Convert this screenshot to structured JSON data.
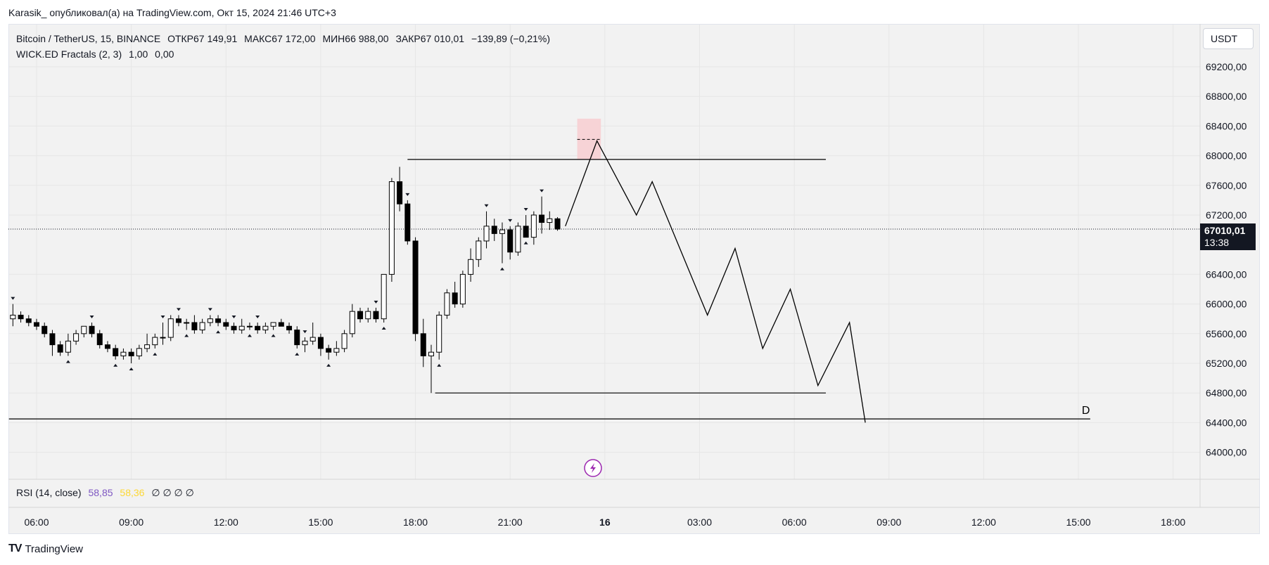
{
  "header": {
    "publisher_line": "Karasik_ опубликовал(а) на TradingView.com, Окт 15, 2024 21:46 UTC+3"
  },
  "legend": {
    "symbol": "Bitcoin / TetherUS, 15, BINANCE",
    "open": "ОТКР67 149,91",
    "high": "МАКС67 172,00",
    "low": "МИН66 988,00",
    "close": "ЗАКР67 010,01",
    "change": "−139,89 (−0,21%)",
    "indicator": "WICK.ED Fractals (2, 3)",
    "indicator_v1": "1,00",
    "indicator_v2": "0,00"
  },
  "rsi": {
    "label": "RSI (14, close)",
    "v1": "58,85",
    "v2": "58,36",
    "nulls": "∅ ∅ ∅ ∅",
    "color1": "#7e57c2",
    "color2": "#fdd835"
  },
  "currency_button": "USDT",
  "last_price": {
    "price": "67010,01",
    "countdown": "13:38"
  },
  "drawing_label": "D",
  "footer": {
    "logo_glyph": "TV",
    "brand": "TradingView"
  },
  "colors": {
    "up_body": "#ffffff",
    "down_body": "#000000",
    "zone": "#f7d3d6",
    "lightning": "#9c27b0"
  },
  "chart_data": {
    "type": "candlestick",
    "ylim": [
      63600,
      69600
    ],
    "y_ticks": [
      "69200,00",
      "68800,00",
      "68400,00",
      "68000,00",
      "67600,00",
      "67200,00",
      "66400,00",
      "66000,00",
      "65600,00",
      "65200,00",
      "64800,00",
      "64400,00",
      "64000,00"
    ],
    "y_tick_values": [
      69200,
      68800,
      68400,
      68000,
      67600,
      67200,
      66400,
      66000,
      65600,
      65200,
      64800,
      64400,
      64000
    ],
    "x_ticks": [
      {
        "label": "06:00",
        "t": 0
      },
      {
        "label": "09:00",
        "t": 12
      },
      {
        "label": "12:00",
        "t": 24
      },
      {
        "label": "15:00",
        "t": 36
      },
      {
        "label": "18:00",
        "t": 48
      },
      {
        "label": "21:00",
        "t": 60
      },
      {
        "label": "16",
        "t": 72,
        "bold": true
      },
      {
        "label": "03:00",
        "t": 84
      },
      {
        "label": "06:00",
        "t": 96
      },
      {
        "label": "09:00",
        "t": 108
      },
      {
        "label": "12:00",
        "t": 120
      },
      {
        "label": "15:00",
        "t": 132
      },
      {
        "label": "18:00",
        "t": 144
      }
    ],
    "candles": [
      {
        "t": -3,
        "o": 65800,
        "h": 66000,
        "l": 65700,
        "c": 65850
      },
      {
        "t": -2,
        "o": 65850,
        "h": 65900,
        "l": 65750,
        "c": 65800
      },
      {
        "t": -1,
        "o": 65800,
        "h": 65850,
        "l": 65700,
        "c": 65750
      },
      {
        "t": 0,
        "o": 65750,
        "h": 65800,
        "l": 65650,
        "c": 65700
      },
      {
        "t": 1,
        "o": 65700,
        "h": 65750,
        "l": 65550,
        "c": 65600
      },
      {
        "t": 2,
        "o": 65600,
        "h": 65650,
        "l": 65300,
        "c": 65450
      },
      {
        "t": 3,
        "o": 65450,
        "h": 65500,
        "l": 65300,
        "c": 65350
      },
      {
        "t": 4,
        "o": 65350,
        "h": 65600,
        "l": 65300,
        "c": 65500
      },
      {
        "t": 5,
        "o": 65500,
        "h": 65650,
        "l": 65450,
        "c": 65600
      },
      {
        "t": 6,
        "o": 65600,
        "h": 65700,
        "l": 65550,
        "c": 65700
      },
      {
        "t": 7,
        "o": 65700,
        "h": 65750,
        "l": 65550,
        "c": 65600
      },
      {
        "t": 8,
        "o": 65600,
        "h": 65650,
        "l": 65400,
        "c": 65450
      },
      {
        "t": 9,
        "o": 65450,
        "h": 65500,
        "l": 65350,
        "c": 65400
      },
      {
        "t": 10,
        "o": 65400,
        "h": 65450,
        "l": 65250,
        "c": 65300
      },
      {
        "t": 11,
        "o": 65300,
        "h": 65400,
        "l": 65250,
        "c": 65350
      },
      {
        "t": 12,
        "o": 65350,
        "h": 65400,
        "l": 65200,
        "c": 65300
      },
      {
        "t": 13,
        "o": 65300,
        "h": 65450,
        "l": 65250,
        "c": 65400
      },
      {
        "t": 14,
        "o": 65400,
        "h": 65600,
        "l": 65350,
        "c": 65450
      },
      {
        "t": 15,
        "o": 65450,
        "h": 65600,
        "l": 65400,
        "c": 65550
      },
      {
        "t": 16,
        "o": 65550,
        "h": 65750,
        "l": 65450,
        "c": 65550
      },
      {
        "t": 17,
        "o": 65550,
        "h": 65850,
        "l": 65500,
        "c": 65800
      },
      {
        "t": 18,
        "o": 65800,
        "h": 65850,
        "l": 65700,
        "c": 65750
      },
      {
        "t": 19,
        "o": 65750,
        "h": 65800,
        "l": 65650,
        "c": 65750
      },
      {
        "t": 20,
        "o": 65750,
        "h": 65850,
        "l": 65600,
        "c": 65650
      },
      {
        "t": 21,
        "o": 65650,
        "h": 65800,
        "l": 65600,
        "c": 65750
      },
      {
        "t": 22,
        "o": 65750,
        "h": 65850,
        "l": 65700,
        "c": 65800
      },
      {
        "t": 23,
        "o": 65800,
        "h": 65850,
        "l": 65700,
        "c": 65750
      },
      {
        "t": 24,
        "o": 65750,
        "h": 65800,
        "l": 65650,
        "c": 65700
      },
      {
        "t": 25,
        "o": 65700,
        "h": 65750,
        "l": 65600,
        "c": 65650
      },
      {
        "t": 26,
        "o": 65650,
        "h": 65800,
        "l": 65600,
        "c": 65700
      },
      {
        "t": 27,
        "o": 65700,
        "h": 65750,
        "l": 65650,
        "c": 65700
      },
      {
        "t": 28,
        "o": 65700,
        "h": 65750,
        "l": 65600,
        "c": 65650
      },
      {
        "t": 29,
        "o": 65650,
        "h": 65750,
        "l": 65600,
        "c": 65700
      },
      {
        "t": 30,
        "o": 65700,
        "h": 65750,
        "l": 65650,
        "c": 65750
      },
      {
        "t": 31,
        "o": 65750,
        "h": 65800,
        "l": 65700,
        "c": 65700
      },
      {
        "t": 32,
        "o": 65700,
        "h": 65750,
        "l": 65600,
        "c": 65650
      },
      {
        "t": 33,
        "o": 65650,
        "h": 65700,
        "l": 65400,
        "c": 65450
      },
      {
        "t": 34,
        "o": 65450,
        "h": 65550,
        "l": 65350,
        "c": 65500
      },
      {
        "t": 35,
        "o": 65500,
        "h": 65750,
        "l": 65450,
        "c": 65550
      },
      {
        "t": 36,
        "o": 65550,
        "h": 65600,
        "l": 65300,
        "c": 65400
      },
      {
        "t": 37,
        "o": 65400,
        "h": 65450,
        "l": 65250,
        "c": 65350
      },
      {
        "t": 38,
        "o": 65350,
        "h": 65500,
        "l": 65300,
        "c": 65400
      },
      {
        "t": 39,
        "o": 65400,
        "h": 65650,
        "l": 65350,
        "c": 65600
      },
      {
        "t": 40,
        "o": 65600,
        "h": 66000,
        "l": 65550,
        "c": 65900
      },
      {
        "t": 41,
        "o": 65900,
        "h": 65950,
        "l": 65750,
        "c": 65800
      },
      {
        "t": 42,
        "o": 65800,
        "h": 65950,
        "l": 65750,
        "c": 65900
      },
      {
        "t": 43,
        "o": 65900,
        "h": 65950,
        "l": 65750,
        "c": 65800
      },
      {
        "t": 44,
        "o": 65800,
        "h": 66400,
        "l": 65750,
        "c": 66400
      },
      {
        "t": 45,
        "o": 66400,
        "h": 67700,
        "l": 66300,
        "c": 67650
      },
      {
        "t": 46,
        "o": 67650,
        "h": 67850,
        "l": 67250,
        "c": 67350
      },
      {
        "t": 47,
        "o": 67350,
        "h": 67400,
        "l": 66800,
        "c": 66850
      },
      {
        "t": 48,
        "o": 66850,
        "h": 66900,
        "l": 65500,
        "c": 65600
      },
      {
        "t": 49,
        "o": 65600,
        "h": 65800,
        "l": 65150,
        "c": 65300
      },
      {
        "t": 50,
        "o": 65300,
        "h": 65450,
        "l": 64800,
        "c": 65350
      },
      {
        "t": 51,
        "o": 65350,
        "h": 65900,
        "l": 65250,
        "c": 65850
      },
      {
        "t": 52,
        "o": 65850,
        "h": 66200,
        "l": 65800,
        "c": 66150
      },
      {
        "t": 53,
        "o": 66150,
        "h": 66300,
        "l": 65950,
        "c": 66000
      },
      {
        "t": 54,
        "o": 66000,
        "h": 66450,
        "l": 65950,
        "c": 66400
      },
      {
        "t": 55,
        "o": 66400,
        "h": 66750,
        "l": 66300,
        "c": 66600
      },
      {
        "t": 56,
        "o": 66600,
        "h": 66900,
        "l": 66500,
        "c": 66850
      },
      {
        "t": 57,
        "o": 66850,
        "h": 67250,
        "l": 66750,
        "c": 67050
      },
      {
        "t": 58,
        "o": 67050,
        "h": 67150,
        "l": 66850,
        "c": 66950
      },
      {
        "t": 59,
        "o": 66950,
        "h": 67100,
        "l": 66550,
        "c": 67000
      },
      {
        "t": 60,
        "o": 67000,
        "h": 67050,
        "l": 66600,
        "c": 66700
      },
      {
        "t": 61,
        "o": 66700,
        "h": 67100,
        "l": 66650,
        "c": 67050
      },
      {
        "t": 62,
        "o": 67050,
        "h": 67200,
        "l": 66900,
        "c": 66900
      },
      {
        "t": 63,
        "o": 66900,
        "h": 67250,
        "l": 66800,
        "c": 67200
      },
      {
        "t": 64,
        "o": 67200,
        "h": 67450,
        "l": 66950,
        "c": 67100
      },
      {
        "t": 65,
        "o": 67100,
        "h": 67250,
        "l": 67000,
        "c": 67150
      },
      {
        "t": 66,
        "o": 67149.91,
        "h": 67172,
        "l": 66988,
        "c": 67010.01
      }
    ],
    "fractals_up": [
      -3,
      7,
      16,
      18,
      22,
      25,
      28,
      34,
      43,
      47,
      57,
      60,
      62,
      64
    ],
    "fractals_down": [
      4,
      10,
      12,
      15,
      19,
      23,
      27,
      30,
      33,
      37,
      44,
      51,
      59,
      62
    ],
    "projection": [
      {
        "t": 67,
        "p": 67050
      },
      {
        "t": 71,
        "p": 68200
      },
      {
        "t": 76,
        "p": 67200
      },
      {
        "t": 78,
        "p": 67650
      },
      {
        "t": 85,
        "p": 65850
      },
      {
        "t": 88.5,
        "p": 66750
      },
      {
        "t": 92,
        "p": 65400
      },
      {
        "t": 95.5,
        "p": 66200
      },
      {
        "t": 99,
        "p": 64900
      },
      {
        "t": 103,
        "p": 65750
      },
      {
        "t": 105,
        "p": 64400
      }
    ],
    "level_high": {
      "t1": 47,
      "t2": 100,
      "p": 67950
    },
    "level_low": {
      "t1": 50.5,
      "t2": 100,
      "p": 64800
    },
    "level_d": {
      "t1": -3.5,
      "t2": 133.5,
      "p": 64450
    },
    "zone": {
      "t1": 68.5,
      "t2": 71.5,
      "p_top": 68500,
      "p_bot": 67950
    },
    "zone_dash": {
      "t1": 68.5,
      "t2": 71.5,
      "p": 68220
    },
    "last_price_value": 67010.01
  }
}
